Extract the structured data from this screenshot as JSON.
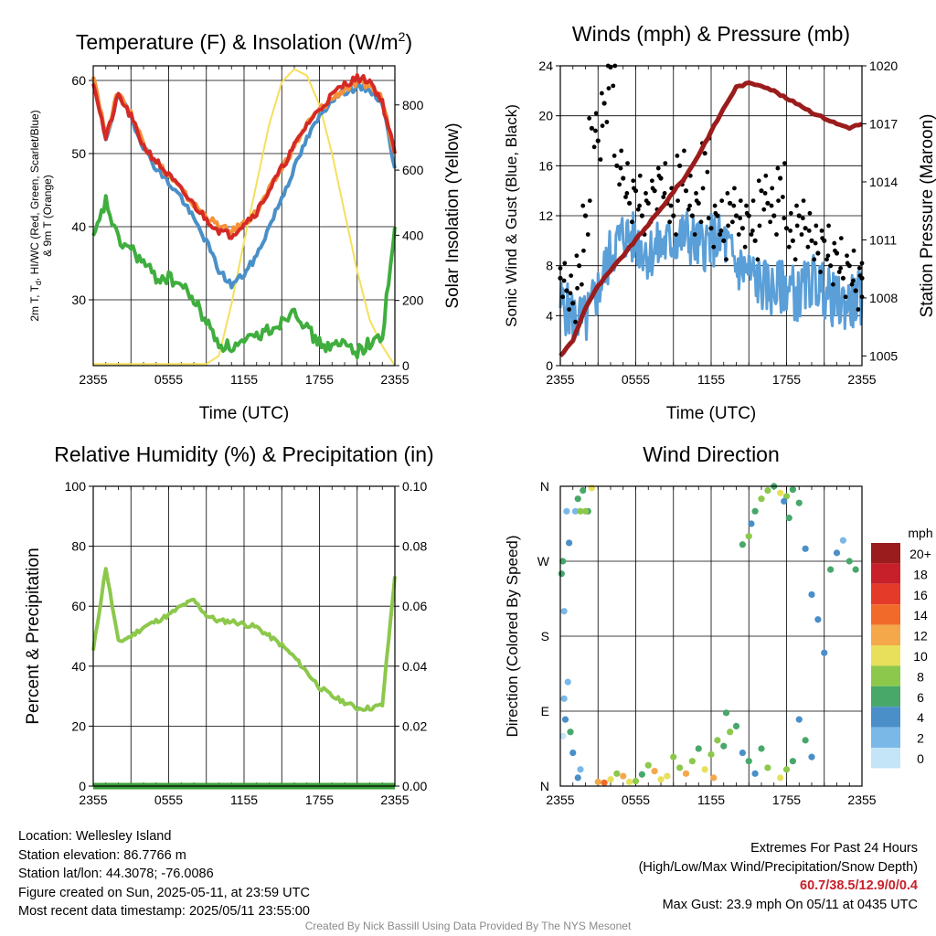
{
  "panels": {
    "temperature": {
      "title": "Temperature (F) & Insolation (W/m",
      "title_sup": "2",
      "title_end": ")",
      "ylabel_line1": "2m T, T",
      "ylabel_sub": "d",
      "ylabel_line1_end": ", HI/WC (Red, Green, Scarlet/Blue)",
      "ylabel_line2": "& 9m T (Orange)",
      "y2label": "Solar Insolation (Yellow)",
      "xlabel": "Time (UTC)"
    },
    "winds": {
      "title": "Winds (mph) & Pressure (mb)",
      "ylabel": "Sonic Wind & Gust (Blue, Black)",
      "y2label": "Station Pressure (Maroon)",
      "xlabel": "Time (UTC)"
    },
    "humidity": {
      "title": "Relative Humidity (%) & Precipitation (in)",
      "ylabel": "Percent & Precipitation"
    },
    "direction": {
      "title": "Wind Direction",
      "ylabel": "Direction (Colored By Speed)",
      "legend_title": "mph"
    }
  },
  "info": {
    "location": "Location: Wellesley Island",
    "elevation": "Station elevation: 86.7766 m",
    "latlon": "Station lat/lon: 44.3078; -76.0086",
    "created": "Figure created on Sun, 2025-05-11, at 23:59 UTC",
    "recent": "Most recent data timestamp: 2025/05/11 23:55:00"
  },
  "extremes": {
    "title": "Extremes For Past 24 Hours",
    "subtitle": "(High/Low/Max Wind/Precipitation/Snow Depth)",
    "values": "60.7/38.5/12.9/0/0.4",
    "gust": "Max Gust: 23.9 mph On 05/11 at 0435 UTC"
  },
  "credit": "Created By Nick Bassill Using Data Provided By The NYS Mesonet",
  "colors": {
    "temp": "#d42a26",
    "dewpoint": "#3fae3e",
    "wind_chill": "#4a90c8",
    "t9m": "#f5923a",
    "solar": "#f5e05a",
    "wind": "#5a9fd8",
    "gust": "#000000",
    "pressure": "#9b1c1c",
    "rh": "#8cc84b",
    "precip": "#3a9e3a"
  },
  "chart_data": [
    {
      "type": "line",
      "title": "Temperature (F) & Insolation (W/m2)",
      "xlabel": "Time (UTC)",
      "x_ticks": [
        "2355",
        "0555",
        "1155",
        "1755",
        "2355"
      ],
      "x": [
        0,
        1,
        2,
        3,
        4,
        5,
        6,
        7,
        8,
        9,
        10,
        11,
        12,
        13,
        14,
        15,
        16,
        17,
        18,
        19,
        20,
        21,
        22,
        23,
        24
      ],
      "ylim": [
        21,
        62
      ],
      "y_ticks": [
        30,
        40,
        50,
        60
      ],
      "y2lim": [
        0,
        920
      ],
      "y2_ticks": [
        0,
        200,
        400,
        600,
        800
      ],
      "series": [
        {
          "name": "2m T",
          "axis": "y",
          "values": [
            60,
            52,
            58,
            55,
            51,
            49,
            47,
            45,
            43,
            41,
            39.5,
            38.8,
            40.5,
            42,
            45,
            48,
            51,
            54,
            56,
            58,
            59.5,
            60.3,
            60,
            57,
            50
          ]
        },
        {
          "name": "Td",
          "axis": "y",
          "values": [
            38,
            43.5,
            38,
            37,
            35,
            33,
            33,
            32,
            30,
            27,
            24,
            23.5,
            24,
            25,
            26,
            27,
            29,
            26,
            24,
            23.5,
            24,
            23,
            24,
            25,
            40
          ]
        },
        {
          "name": "HI/WC",
          "axis": "y",
          "values": [
            60,
            52,
            58,
            55,
            51,
            48,
            46,
            44,
            41,
            38,
            34,
            32,
            33.5,
            36,
            40,
            44,
            48,
            52,
            55,
            57.5,
            58.5,
            59,
            58.8,
            57,
            48
          ]
        },
        {
          "name": "9m T",
          "axis": "y",
          "values": [
            61,
            52.5,
            58.5,
            55.5,
            51.5,
            49,
            47,
            45,
            43,
            41.5,
            40,
            39.3,
            40.5,
            42,
            45,
            48,
            51,
            54,
            56,
            57.5,
            58.8,
            59.5,
            59.3,
            57.5,
            50
          ]
        },
        {
          "name": "Solar Insolation",
          "axis": "y2",
          "values": [
            5,
            5,
            5,
            5,
            5,
            5,
            5,
            5,
            5,
            5,
            30,
            190,
            380,
            560,
            740,
            870,
            910,
            890,
            800,
            650,
            470,
            290,
            140,
            60,
            0
          ]
        }
      ]
    },
    {
      "type": "line",
      "title": "Winds (mph) & Pressure (mb)",
      "xlabel": "Time (UTC)",
      "x_ticks": [
        "2355",
        "0555",
        "1155",
        "1755",
        "2355"
      ],
      "ylim": [
        0,
        24
      ],
      "y_ticks": [
        0,
        4,
        8,
        12,
        16,
        20,
        24
      ],
      "y2lim": [
        1004.5,
        1020
      ],
      "y2_ticks": [
        1005,
        1008,
        1011,
        1014,
        1017,
        1020
      ],
      "series": [
        {
          "name": "Sonic Wind",
          "axis": "y",
          "x": [
            0,
            1,
            2,
            3,
            4,
            5,
            6,
            7,
            8,
            9,
            10,
            11,
            12,
            13,
            14,
            15,
            16,
            17,
            18,
            19,
            20,
            21,
            22,
            23,
            24
          ],
          "values": [
            5,
            4,
            3.5,
            6,
            9,
            10.5,
            10,
            9,
            9.5,
            10,
            10.5,
            9.5,
            10,
            10,
            8,
            7.5,
            6.5,
            6,
            6.5,
            5.5,
            7,
            6,
            5,
            5,
            5.5
          ]
        },
        {
          "name": "Gust",
          "axis": "y",
          "x": [
            0,
            0.5,
            1,
            1.5,
            2,
            2.5,
            3,
            3.5,
            4,
            4.5,
            5,
            5.5,
            6,
            6.5,
            7,
            7.5,
            8,
            8.5,
            9,
            9.5,
            10,
            10.5,
            11,
            11.5,
            12,
            12.5,
            13,
            13.5,
            14,
            14.5,
            15,
            15.5,
            16,
            16.5,
            17,
            17.5,
            18,
            18.5,
            19,
            19.5,
            20,
            20.5,
            21,
            21.5,
            22,
            22.5,
            23,
            23.5,
            24
          ],
          "values": [
            7,
            6,
            5,
            8,
            12,
            19,
            18,
            21,
            23.9,
            16,
            15,
            13,
            14,
            12,
            13,
            14,
            15,
            13,
            12,
            16,
            14,
            12,
            13,
            17,
            11,
            12,
            10,
            13,
            12,
            11,
            12,
            10,
            14,
            13,
            12,
            15,
            11,
            10,
            12,
            11,
            10,
            9,
            10,
            8,
            9,
            7,
            8,
            6,
            7
          ]
        },
        {
          "name": "Station Pressure",
          "axis": "y2",
          "x": [
            0,
            1,
            2,
            3,
            4,
            5,
            6,
            7,
            8,
            9,
            10,
            11,
            12,
            13,
            14,
            15,
            16,
            17,
            18,
            19,
            20,
            21,
            22,
            23,
            24
          ],
          "values": [
            1005,
            1005.8,
            1007.5,
            1008.6,
            1009.4,
            1010.2,
            1011,
            1011.8,
            1012.6,
            1013.5,
            1014.3,
            1015.4,
            1016.6,
            1017.8,
            1018.9,
            1019.1,
            1019,
            1018.7,
            1018.3,
            1018,
            1017.6,
            1017.3,
            1017,
            1016.8,
            1017
          ]
        }
      ]
    },
    {
      "type": "line",
      "title": "Relative Humidity (%) & Precipitation (in)",
      "x_ticks": [
        "2355",
        "0555",
        "1155",
        "1755",
        "2355"
      ],
      "x": [
        0,
        1,
        2,
        3,
        4,
        5,
        6,
        7,
        8,
        9,
        10,
        11,
        12,
        13,
        14,
        15,
        16,
        17,
        18,
        19,
        20,
        21,
        22,
        23,
        24
      ],
      "ylim": [
        0,
        100
      ],
      "y_ticks": [
        0,
        20,
        40,
        60,
        80,
        100
      ],
      "y2lim": [
        0,
        0.1
      ],
      "y2_ticks": [
        "0.00",
        "0.02",
        "0.04",
        "0.06",
        "0.08",
        "0.10"
      ],
      "series": [
        {
          "name": "Relative Humidity",
          "axis": "y",
          "values": [
            45,
            73,
            48,
            50,
            53,
            55,
            57,
            60,
            62,
            57,
            55,
            55,
            54,
            53,
            50,
            47,
            43,
            38,
            33,
            30,
            28,
            26,
            26,
            27,
            70
          ]
        },
        {
          "name": "Precipitation",
          "axis": "y2",
          "values": [
            0,
            0,
            0,
            0,
            0,
            0,
            0,
            0,
            0,
            0,
            0,
            0,
            0,
            0,
            0,
            0,
            0,
            0,
            0,
            0,
            0,
            0,
            0,
            0,
            0
          ]
        }
      ]
    },
    {
      "type": "scatter",
      "title": "Wind Direction",
      "x_ticks": [
        "2355",
        "0555",
        "1155",
        "1755",
        "2355"
      ],
      "y_ticks": [
        "N",
        "E",
        "S",
        "W",
        "N"
      ],
      "ylim": [
        0,
        360
      ],
      "legend": {
        "title": "mph",
        "labels": [
          "20+",
          "18",
          "16",
          "14",
          "12",
          "10",
          "8",
          "6",
          "4",
          "2",
          "0"
        ],
        "colors": [
          "#9b1c1c",
          "#c8202a",
          "#e43a2a",
          "#f16a2a",
          "#f5a84a",
          "#e8e05a",
          "#8cc84b",
          "#47a86a",
          "#4a8fc8",
          "#7ab8e8",
          "#c4e4f8"
        ]
      },
      "points": [
        {
          "x": 0.2,
          "dir": 60,
          "speed": 0
        },
        {
          "x": 0.3,
          "dir": 105,
          "speed": 1
        },
        {
          "x": 0.4,
          "dir": 80,
          "speed": 3
        },
        {
          "x": 0.6,
          "dir": 125,
          "speed": 2
        },
        {
          "x": 0.8,
          "dir": 65,
          "speed": 5
        },
        {
          "x": 1.0,
          "dir": 40,
          "speed": 4
        },
        {
          "x": 1.2,
          "dir": 330,
          "speed": 1
        },
        {
          "x": 1.4,
          "dir": 345,
          "speed": 5
        },
        {
          "x": 1.6,
          "dir": 330,
          "speed": 8
        },
        {
          "x": 1.8,
          "dir": 355,
          "speed": 6
        },
        {
          "x": 1.4,
          "dir": 10,
          "speed": 4
        },
        {
          "x": 1.6,
          "dir": 20,
          "speed": 2
        },
        {
          "x": 0.3,
          "dir": 210,
          "speed": 1
        },
        {
          "x": 0.2,
          "dir": 270,
          "speed": 5
        },
        {
          "x": 0.1,
          "dir": 255,
          "speed": 5
        },
        {
          "x": 0.5,
          "dir": 330,
          "speed": 2
        },
        {
          "x": 0.7,
          "dir": 292,
          "speed": 3
        },
        {
          "x": 2.2,
          "dir": 330,
          "speed": 6
        },
        {
          "x": 2.0,
          "dir": 330,
          "speed": 7
        },
        {
          "x": 2.5,
          "dir": 358,
          "speed": 10
        },
        {
          "x": 3.0,
          "dir": 5,
          "speed": 11
        },
        {
          "x": 3.5,
          "dir": 4,
          "speed": 13
        },
        {
          "x": 4.0,
          "dir": 8,
          "speed": 10
        },
        {
          "x": 4.5,
          "dir": 15,
          "speed": 7
        },
        {
          "x": 5.0,
          "dir": 12,
          "speed": 12
        },
        {
          "x": 5.5,
          "dir": 5,
          "speed": 10
        },
        {
          "x": 6.0,
          "dir": 6,
          "speed": 8
        },
        {
          "x": 6.5,
          "dir": 14,
          "speed": 6
        },
        {
          "x": 7.0,
          "dir": 25,
          "speed": 8
        },
        {
          "x": 7.5,
          "dir": 18,
          "speed": 12
        },
        {
          "x": 8.0,
          "dir": 8,
          "speed": 10
        },
        {
          "x": 8.5,
          "dir": 12,
          "speed": 9
        },
        {
          "x": 9.0,
          "dir": 35,
          "speed": 7
        },
        {
          "x": 9.5,
          "dir": 22,
          "speed": 8
        },
        {
          "x": 10.0,
          "dir": 15,
          "speed": 11
        },
        {
          "x": 10.5,
          "dir": 30,
          "speed": 7
        },
        {
          "x": 11.0,
          "dir": 45,
          "speed": 6
        },
        {
          "x": 11.5,
          "dir": 20,
          "speed": 9
        },
        {
          "x": 12.0,
          "dir": 38,
          "speed": 8
        },
        {
          "x": 12.5,
          "dir": 55,
          "speed": 7
        },
        {
          "x": 13.0,
          "dir": 48,
          "speed": 6
        },
        {
          "x": 13.5,
          "dir": 65,
          "speed": 7
        },
        {
          "x": 14.0,
          "dir": 72,
          "speed": 6
        },
        {
          "x": 14.5,
          "dir": 40,
          "speed": 4
        },
        {
          "x": 15.0,
          "dir": 30,
          "speed": 5
        },
        {
          "x": 15.5,
          "dir": 15,
          "speed": 3
        },
        {
          "x": 12.2,
          "dir": 10,
          "speed": 12
        },
        {
          "x": 13.2,
          "dir": 88,
          "speed": 5
        },
        {
          "x": 14.5,
          "dir": 290,
          "speed": 6
        },
        {
          "x": 15.0,
          "dir": 300,
          "speed": 7
        },
        {
          "x": 15.5,
          "dir": 330,
          "speed": 6
        },
        {
          "x": 16.0,
          "dir": 345,
          "speed": 8
        },
        {
          "x": 16.5,
          "dir": 355,
          "speed": 7
        },
        {
          "x": 17.0,
          "dir": 360,
          "speed": 6
        },
        {
          "x": 17.5,
          "dir": 352,
          "speed": 9
        },
        {
          "x": 18.0,
          "dir": 348,
          "speed": 7
        },
        {
          "x": 18.5,
          "dir": 356,
          "speed": 5
        },
        {
          "x": 19.0,
          "dir": 340,
          "speed": 6
        },
        {
          "x": 15.2,
          "dir": 315,
          "speed": 4
        },
        {
          "x": 17.8,
          "dir": 342,
          "speed": 3
        },
        {
          "x": 18.2,
          "dir": 322,
          "speed": 6
        },
        {
          "x": 19.5,
          "dir": 285,
          "speed": 4
        },
        {
          "x": 20.0,
          "dir": 230,
          "speed": 4
        },
        {
          "x": 20.5,
          "dir": 200,
          "speed": 3
        },
        {
          "x": 21.0,
          "dir": 160,
          "speed": 4
        },
        {
          "x": 21.5,
          "dir": 260,
          "speed": 5
        },
        {
          "x": 22.0,
          "dir": 280,
          "speed": 4
        },
        {
          "x": 22.5,
          "dir": 295,
          "speed": 2
        },
        {
          "x": 23.0,
          "dir": 270,
          "speed": 6
        },
        {
          "x": 23.5,
          "dir": 260,
          "speed": 6
        },
        {
          "x": 19.0,
          "dir": 80,
          "speed": 4
        },
        {
          "x": 19.5,
          "dir": 55,
          "speed": 5
        },
        {
          "x": 20.0,
          "dir": 35,
          "speed": 4
        },
        {
          "x": 18.5,
          "dir": 30,
          "speed": 6
        },
        {
          "x": 18.0,
          "dir": 20,
          "speed": 8
        },
        {
          "x": 17.5,
          "dir": 10,
          "speed": 9
        },
        {
          "x": 16.5,
          "dir": 22,
          "speed": 7
        },
        {
          "x": 16.0,
          "dir": 45,
          "speed": 6
        }
      ]
    }
  ]
}
